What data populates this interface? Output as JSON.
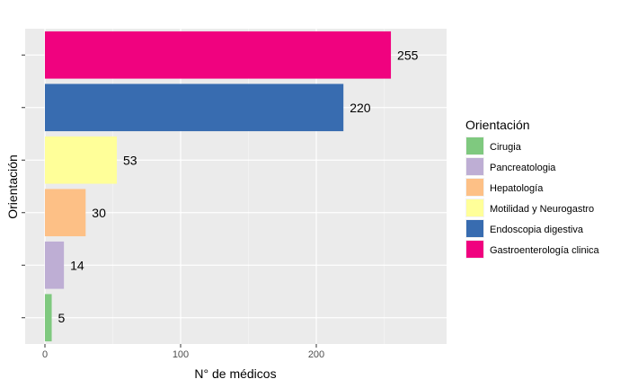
{
  "chart_data": {
    "type": "bar",
    "orientation": "horizontal",
    "categories": [
      "Cirugia",
      "Pancreatologia",
      "Hepatología",
      "Motilidad y Neurogastro",
      "Endoscopia digestiva",
      "Gastroenterología clinica"
    ],
    "values": [
      5,
      14,
      30,
      53,
      220,
      255
    ],
    "colors": [
      "#7fc97f",
      "#beaed4",
      "#fdc086",
      "#ffff99",
      "#386cb0",
      "#f0027f"
    ],
    "xlabel": "N° de médicos",
    "ylabel": "Orientación",
    "xlim": [
      0,
      285
    ],
    "xticks": [
      0,
      100,
      200
    ],
    "grid": true,
    "panel_background": "#ebebeb",
    "legend": {
      "title": "Orientación",
      "position": "right",
      "entries": [
        "Cirugia",
        "Pancreatologia",
        "Hepatología",
        "Motilidad y Neurogastro",
        "Endoscopia digestiva",
        "Gastroenterología clinica"
      ]
    }
  }
}
